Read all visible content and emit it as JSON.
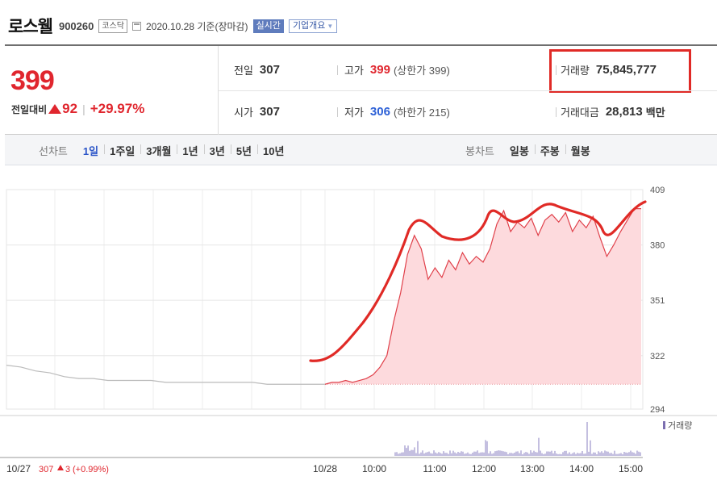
{
  "header": {
    "name": "로스웰",
    "code": "900260",
    "market": "코스닥",
    "date": "2020.10.28 기준(장마감)",
    "realtime_label": "실시간",
    "overview_label": "기업개요"
  },
  "quote": {
    "price": "399",
    "change_label": "전일대비",
    "change": "92",
    "change_pct": "+29.97%",
    "prev_label": "전일",
    "prev": "307",
    "high_label": "고가",
    "high": "399",
    "upper_limit": "(상한가 399)",
    "volume_label": "거래량",
    "volume": "75,845,777",
    "open_label": "시가",
    "open": "307",
    "low_label": "저가",
    "low": "306",
    "lower_limit": "(하한가 215)",
    "amount_label": "거래대금",
    "amount": "28,813",
    "amount_unit": "백만"
  },
  "period_bar": {
    "line_label": "선차트",
    "line_periods": [
      "1일",
      "1주일",
      "3개월",
      "1년",
      "3년",
      "5년",
      "10년"
    ],
    "active": "1일",
    "candle_label": "봉차트",
    "candle_periods": [
      "일봉",
      "주봉",
      "월봉"
    ]
  },
  "chart_data": {
    "type": "line",
    "y_ticks": [
      "409",
      "380",
      "351",
      "322",
      "294"
    ],
    "ylim": [
      294,
      409
    ],
    "x_labels": [
      "10/27",
      "10/28",
      "10:00",
      "11:00",
      "12:00",
      "13:00",
      "14:00",
      "15:00"
    ],
    "prev_day_label": "10/27",
    "prev_day_close": "307",
    "prev_day_change": "3",
    "prev_day_pct": "(+0.99%)",
    "volume_legend": "거래량",
    "prev_day_series": [
      317,
      316,
      314,
      313,
      311,
      310,
      310,
      309,
      309,
      309,
      309,
      308,
      308,
      308,
      308,
      308,
      308,
      308,
      307,
      307,
      307,
      307,
      307
    ],
    "today_series": [
      307,
      308,
      308,
      309,
      308,
      309,
      310,
      312,
      316,
      322,
      340,
      355,
      375,
      385,
      378,
      362,
      368,
      363,
      372,
      367,
      376,
      370,
      374,
      371,
      378,
      391,
      398,
      387,
      392,
      389,
      394,
      385,
      393,
      396,
      392,
      397,
      387,
      393,
      389,
      395,
      384,
      374,
      380,
      387,
      393,
      399,
      399
    ],
    "line_color": "#e0404a",
    "area_color": "#fddadd",
    "prev_color": "#bbbbbb",
    "annotation_color": "#e02a26"
  },
  "colors": {
    "up": "#e0262e",
    "down": "#2b5fd6",
    "accent": "#2b55c8"
  }
}
